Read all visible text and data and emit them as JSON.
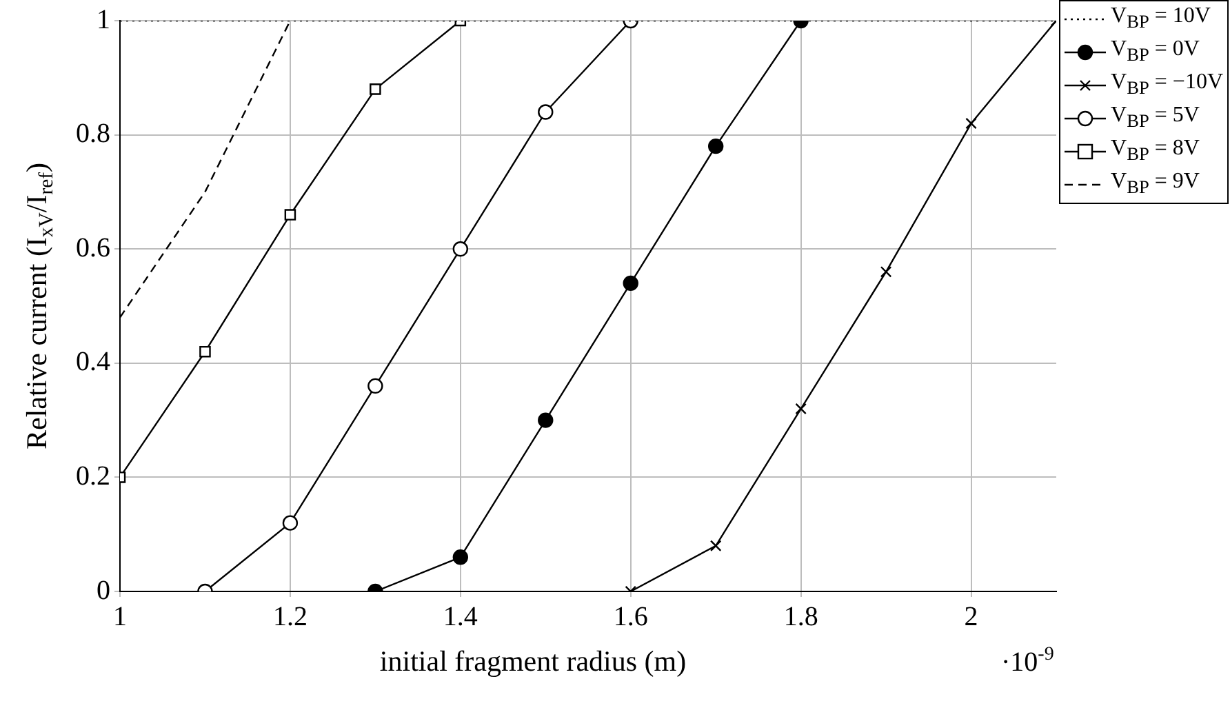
{
  "chart_data": {
    "type": "line",
    "xlabel": "initial fragment radius (m)",
    "ylabel": "Relative current (I$_{xV}$/I$_{ref}$)",
    "annotations": [
      "·10$^{-9}$"
    ],
    "xlim": [
      1,
      2.1
    ],
    "xticks": [
      1,
      1.2,
      1.4,
      1.6,
      1.8,
      2
    ],
    "ylim": [
      0,
      1
    ],
    "yticks": [
      0,
      0.2,
      0.4,
      0.6,
      0.8,
      1
    ],
    "grid": true,
    "legend": "top right",
    "series": [
      {
        "name": "V$_{BP}$ = 10V",
        "color": "#000000",
        "line_style": "dotted",
        "x": [
          1,
          2.1
        ],
        "values": [
          1,
          1
        ]
      },
      {
        "name": "V$_{BP}$ = 0V",
        "color": "#000000",
        "colors": [
          "#000000",
          "#000000",
          "#000000",
          "#000000",
          "#000000",
          "#000000"
        ],
        "marker": "circle",
        "line_style": "solid",
        "x": [
          1.3,
          1.4,
          1.5,
          1.6,
          1.7,
          1.8
        ],
        "values": [
          0,
          0.06,
          0.3,
          0.54,
          0.78,
          1
        ]
      },
      {
        "name": "V$_{BP}$ = −10V",
        "color": "#000000",
        "marker": "cross",
        "line_style": "solid",
        "x": [
          1.6,
          1.7,
          1.8,
          1.9,
          2,
          2.1
        ],
        "values": [
          0,
          0.08,
          0.32,
          0.56,
          0.82,
          1
        ]
      },
      {
        "name": "V$_{BP}$ = 5V",
        "color": "#000000",
        "marker": "circle",
        "line_style": "solid",
        "x": [
          1.1,
          1.2,
          1.3,
          1.4,
          1.5,
          1.6
        ],
        "values": [
          0,
          0.12,
          0.36,
          0.6,
          0.84,
          1
        ]
      },
      {
        "name": "V$_{BP}$ = 8V",
        "color": "#000000",
        "marker": "square",
        "line_style": "solid",
        "x": [
          1,
          1.1,
          1.2,
          1.3,
          1.4
        ],
        "values": [
          0.2,
          0.42,
          0.66,
          0.88,
          1
        ]
      },
      {
        "name": "V$_{BP}$ = 9V",
        "color": "#000000",
        "line_style": "dashed",
        "x": [
          1,
          1.1,
          1.2
        ],
        "values": [
          0.48,
          0.7,
          1
        ]
      }
    ]
  }
}
